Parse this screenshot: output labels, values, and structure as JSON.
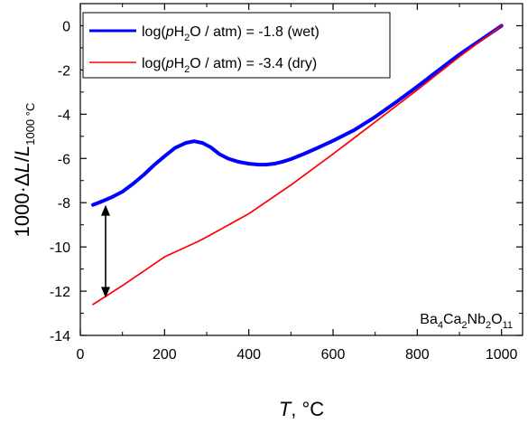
{
  "chart_data": {
    "type": "line",
    "xlabel": {
      "var": "T",
      "rest": ", °C"
    },
    "ylabel": {
      "prefix": "1000·ΔL/L",
      "sub": "1000 °C"
    },
    "xlim": [
      0,
      1050
    ],
    "ylim": [
      -14,
      1
    ],
    "xticks": [
      0,
      200,
      400,
      600,
      800,
      1000
    ],
    "yticks": [
      0,
      -2,
      -4,
      -6,
      -8,
      -10,
      -12,
      -14
    ],
    "grid": false,
    "legend_position": "top-left",
    "annotation": {
      "pre": "Ba",
      "s1": "4",
      "m1": "Ca",
      "s2": "2",
      "m2": "Nb",
      "s3": "2",
      "m3": "O",
      "s4": "11"
    },
    "arrow": {
      "x": 60,
      "y_top": -8.1,
      "y_bottom": -12.3,
      "style": "double-headed"
    },
    "series": [
      {
        "legend": {
          "pre": "log(",
          "var": "p",
          "h": "H",
          "sub": "2",
          "post": "O / atm) = -1.8 (wet)"
        },
        "color": "#0000ff",
        "x": [
          30,
          50,
          75,
          100,
          125,
          150,
          175,
          200,
          225,
          250,
          270,
          290,
          310,
          330,
          350,
          375,
          400,
          425,
          440,
          460,
          480,
          500,
          530,
          560,
          600,
          650,
          700,
          750,
          800,
          850,
          900,
          950,
          1000
        ],
        "y": [
          -8.1,
          -7.95,
          -7.75,
          -7.5,
          -7.15,
          -6.75,
          -6.3,
          -5.9,
          -5.52,
          -5.3,
          -5.22,
          -5.3,
          -5.5,
          -5.8,
          -6.0,
          -6.15,
          -6.24,
          -6.28,
          -6.28,
          -6.24,
          -6.15,
          -6.03,
          -5.8,
          -5.55,
          -5.2,
          -4.72,
          -4.12,
          -3.45,
          -2.75,
          -2.02,
          -1.3,
          -0.65,
          0.0
        ]
      },
      {
        "legend": {
          "pre": "log(",
          "var": "p",
          "h": "H",
          "sub": "2",
          "post": "O / atm) = -3.4 (dry)"
        },
        "color": "#ff0000",
        "x": [
          30,
          100,
          200,
          280,
          300,
          400,
          500,
          600,
          700,
          800,
          900,
          1000
        ],
        "y": [
          -12.6,
          -11.75,
          -10.45,
          -9.75,
          -9.55,
          -8.5,
          -7.2,
          -5.8,
          -4.35,
          -2.9,
          -1.4,
          0.0
        ]
      }
    ]
  }
}
